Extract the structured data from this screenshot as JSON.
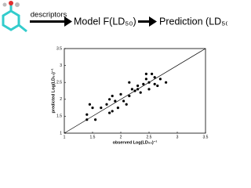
{
  "scheme": {
    "descriptors": "descriptors",
    "model": "Model F(LD₅₀)",
    "prediction": "Prediction (LD₅₀)"
  },
  "chart_data": {
    "type": "scatter",
    "xlabel": "observed Log(LD₅₀)⁻¹",
    "ylabel": "predicted Log(LD₅₀)⁻¹",
    "xlim": [
      1,
      3.5
    ],
    "ylim": [
      1,
      3.5
    ],
    "xticks": [
      1,
      1.5,
      2,
      2.5,
      3,
      3.5
    ],
    "yticks": [
      1,
      1.5,
      2,
      2.5,
      3,
      3.5
    ],
    "color": "#000000",
    "x": [
      1.4,
      1.45,
      1.5,
      1.55,
      1.4,
      1.65,
      1.75,
      1.8,
      1.85,
      1.85,
      1.9,
      1.95,
      2.0,
      2.05,
      2.1,
      2.15,
      2.2,
      2.15,
      2.25,
      2.3,
      2.35,
      2.4,
      2.45,
      2.5,
      2.5,
      2.55,
      2.6,
      2.6,
      2.65,
      2.7,
      2.8,
      2.3,
      1.8,
      2.45
    ],
    "y": [
      1.55,
      1.85,
      1.75,
      1.4,
      1.4,
      1.75,
      1.85,
      1.6,
      1.65,
      2.1,
      1.95,
      1.75,
      2.15,
      1.95,
      1.85,
      2.1,
      2.3,
      2.5,
      2.25,
      2.4,
      2.2,
      2.45,
      2.6,
      2.5,
      2.3,
      2.75,
      2.65,
      2.45,
      2.4,
      2.6,
      2.5,
      2.3,
      2.0,
      2.75
    ]
  }
}
